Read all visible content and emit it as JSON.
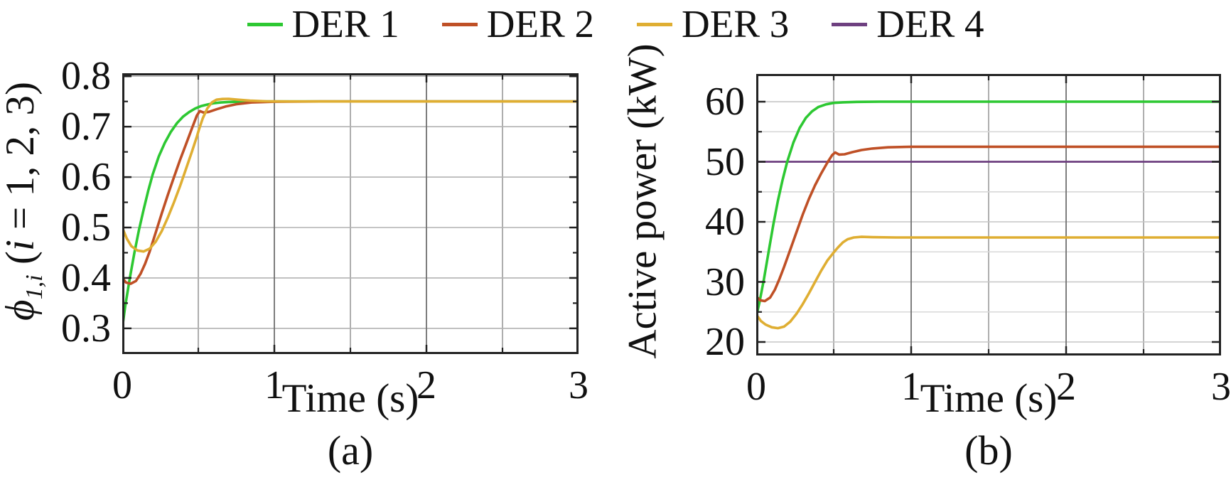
{
  "figure": {
    "background": "#ffffff",
    "text_color": "#111111",
    "axis_color": "#222222"
  },
  "legend": {
    "items": [
      {
        "label": "DER 1",
        "color": "#2dc832"
      },
      {
        "label": "DER 2",
        "color": "#bf5026"
      },
      {
        "label": "DER 3",
        "color": "#dfae32"
      },
      {
        "label": "DER 4",
        "color": "#6e4080"
      }
    ]
  },
  "chart_data": [
    {
      "id": "a",
      "type": "line",
      "title": "",
      "xlabel": "Time (s)",
      "ylabel": "ϕ1,i (i = 1, 2, 3)",
      "ylabel_parts": {
        "phi": "ϕ",
        "sub": "1,i",
        "open": " (",
        "var": "i",
        "rest": " = 1, 2, 3)"
      },
      "sublabel": "(a)",
      "xlim": [
        0,
        3
      ],
      "ylim": [
        0.249,
        0.806
      ],
      "xticks": [
        {
          "v": 0,
          "label": "0"
        },
        {
          "v": 1,
          "label": "1"
        },
        {
          "v": 2,
          "label": "2"
        },
        {
          "v": 3,
          "label": "3"
        }
      ],
      "xticks_minor": [
        0.5,
        1.5,
        2.5
      ],
      "yticks": [
        {
          "v": 0.3,
          "label": "0.3"
        },
        {
          "v": 0.4,
          "label": "0.4"
        },
        {
          "v": 0.5,
          "label": "0.5"
        },
        {
          "v": 0.6,
          "label": "0.6"
        },
        {
          "v": 0.7,
          "label": "0.7"
        },
        {
          "v": 0.8,
          "label": "0.8"
        }
      ],
      "yticks_minor": [
        0.35,
        0.45,
        0.55,
        0.65,
        0.75
      ],
      "grid": {
        "x_major": [
          1,
          2
        ],
        "x_minor": [
          0.5,
          1.5,
          2.5
        ],
        "y_major": [
          0.3,
          0.4,
          0.5,
          0.6,
          0.7,
          0.8
        ],
        "y_minor": []
      },
      "grid_colors": {
        "x_major": "#6f6f6f",
        "x_minor": "#9a9a9a",
        "y_major": "#b2b2b2",
        "y_minor": "#d6d6d6"
      },
      "series": [
        {
          "name": "DER 1",
          "color": "#2dc832",
          "points": [
            [
              0,
              0.3
            ],
            [
              0.02,
              0.345
            ],
            [
              0.05,
              0.4
            ],
            [
              0.08,
              0.45
            ],
            [
              0.11,
              0.495
            ],
            [
              0.14,
              0.535
            ],
            [
              0.17,
              0.572
            ],
            [
              0.2,
              0.605
            ],
            [
              0.24,
              0.641
            ],
            [
              0.28,
              0.668
            ],
            [
              0.32,
              0.69
            ],
            [
              0.36,
              0.707
            ],
            [
              0.4,
              0.72
            ],
            [
              0.44,
              0.729
            ],
            [
              0.48,
              0.736
            ],
            [
              0.52,
              0.741
            ],
            [
              0.56,
              0.744
            ],
            [
              0.6,
              0.7465
            ],
            [
              0.65,
              0.748
            ],
            [
              0.7,
              0.749
            ],
            [
              0.8,
              0.7498
            ],
            [
              0.9,
              0.75
            ],
            [
              3,
              0.75
            ]
          ]
        },
        {
          "name": "DER 2",
          "color": "#bf5026",
          "points": [
            [
              0,
              0.4
            ],
            [
              0.025,
              0.391
            ],
            [
              0.055,
              0.3885
            ],
            [
              0.09,
              0.394
            ],
            [
              0.12,
              0.408
            ],
            [
              0.15,
              0.428
            ],
            [
              0.18,
              0.452
            ],
            [
              0.22,
              0.49
            ],
            [
              0.26,
              0.528
            ],
            [
              0.3,
              0.565
            ],
            [
              0.34,
              0.6
            ],
            [
              0.38,
              0.634
            ],
            [
              0.42,
              0.666
            ],
            [
              0.46,
              0.698
            ],
            [
              0.49,
              0.722
            ],
            [
              0.51,
              0.731
            ],
            [
              0.535,
              0.728
            ],
            [
              0.57,
              0.7295
            ],
            [
              0.62,
              0.7345
            ],
            [
              0.68,
              0.74
            ],
            [
              0.75,
              0.7445
            ],
            [
              0.85,
              0.748
            ],
            [
              1.0,
              0.7495
            ],
            [
              1.3,
              0.75
            ],
            [
              3,
              0.75
            ]
          ]
        },
        {
          "name": "DER 3",
          "color": "#dfae32",
          "points": [
            [
              0,
              0.5
            ],
            [
              0.03,
              0.478
            ],
            [
              0.06,
              0.463
            ],
            [
              0.1,
              0.4545
            ],
            [
              0.14,
              0.4525
            ],
            [
              0.18,
              0.458
            ],
            [
              0.22,
              0.472
            ],
            [
              0.26,
              0.493
            ],
            [
              0.3,
              0.52
            ],
            [
              0.34,
              0.55
            ],
            [
              0.38,
              0.582
            ],
            [
              0.42,
              0.617
            ],
            [
              0.46,
              0.652
            ],
            [
              0.49,
              0.68
            ],
            [
              0.505,
              0.695
            ],
            [
              0.53,
              0.717
            ],
            [
              0.56,
              0.7365
            ],
            [
              0.59,
              0.7485
            ],
            [
              0.62,
              0.7535
            ],
            [
              0.66,
              0.755
            ],
            [
              0.7,
              0.7553
            ],
            [
              0.76,
              0.7535
            ],
            [
              0.84,
              0.7515
            ],
            [
              0.95,
              0.7503
            ],
            [
              1.1,
              0.75
            ],
            [
              3,
              0.75
            ]
          ]
        }
      ]
    },
    {
      "id": "b",
      "type": "line",
      "title": "",
      "xlabel": "Time (s)",
      "ylabel": "Active power (kW)",
      "sublabel": "(b)",
      "xlim": [
        0,
        3
      ],
      "ylim": [
        17.75,
        64.62
      ],
      "xticks": [
        {
          "v": 0,
          "label": "0"
        },
        {
          "v": 1,
          "label": "1"
        },
        {
          "v": 2,
          "label": "2"
        },
        {
          "v": 3,
          "label": "3"
        }
      ],
      "xticks_minor": [
        0.5,
        1.5,
        2.5
      ],
      "yticks": [
        {
          "v": 20,
          "label": "20"
        },
        {
          "v": 30,
          "label": "30"
        },
        {
          "v": 40,
          "label": "40"
        },
        {
          "v": 50,
          "label": "50"
        },
        {
          "v": 60,
          "label": "60"
        }
      ],
      "yticks_minor": [
        25,
        35,
        45,
        55
      ],
      "grid": {
        "x_major": [
          1,
          2
        ],
        "x_minor": [
          0.5,
          1.5,
          2.5
        ],
        "y_major": [
          20,
          30,
          40,
          50,
          60
        ],
        "y_minor": [
          25,
          35,
          45,
          55
        ]
      },
      "grid_colors": {
        "x_major": "#6f6f6f",
        "x_minor": "#9a9a9a",
        "y_major": "#c6c6c6",
        "y_minor": "#d8d8d8"
      },
      "series": [
        {
          "name": "DER 4",
          "color": "#6e4080",
          "points": [
            [
              0,
              50
            ],
            [
              3,
              50
            ]
          ]
        },
        {
          "name": "DER 1",
          "color": "#2dc832",
          "points": [
            [
              0,
              24.2
            ],
            [
              0.02,
              26.5
            ],
            [
              0.05,
              30.5
            ],
            [
              0.08,
              35
            ],
            [
              0.11,
              39.5
            ],
            [
              0.14,
              43.5
            ],
            [
              0.17,
              47
            ],
            [
              0.2,
              50
            ],
            [
              0.24,
              53.2
            ],
            [
              0.28,
              55.6
            ],
            [
              0.32,
              57.3
            ],
            [
              0.36,
              58.4
            ],
            [
              0.4,
              59.1
            ],
            [
              0.45,
              59.55
            ],
            [
              0.5,
              59.8
            ],
            [
              0.56,
              59.9
            ],
            [
              0.65,
              59.97
            ],
            [
              0.8,
              60
            ],
            [
              3,
              60
            ]
          ]
        },
        {
          "name": "DER 2",
          "color": "#bf5026",
          "points": [
            [
              0,
              27.6
            ],
            [
              0.025,
              26.95
            ],
            [
              0.055,
              26.8
            ],
            [
              0.09,
              27.4
            ],
            [
              0.12,
              28.7
            ],
            [
              0.15,
              30.5
            ],
            [
              0.18,
              32.5
            ],
            [
              0.22,
              35.4
            ],
            [
              0.26,
              38.3
            ],
            [
              0.3,
              41.2
            ],
            [
              0.34,
              43.8
            ],
            [
              0.38,
              46.1
            ],
            [
              0.42,
              48.1
            ],
            [
              0.46,
              49.9
            ],
            [
              0.49,
              51.1
            ],
            [
              0.51,
              51.55
            ],
            [
              0.535,
              51.2
            ],
            [
              0.57,
              51.25
            ],
            [
              0.62,
              51.6
            ],
            [
              0.68,
              51.95
            ],
            [
              0.75,
              52.2
            ],
            [
              0.85,
              52.4
            ],
            [
              1.0,
              52.5
            ],
            [
              3,
              52.5
            ]
          ]
        },
        {
          "name": "DER 3",
          "color": "#dfae32",
          "points": [
            [
              0,
              24.6
            ],
            [
              0.03,
              23.5
            ],
            [
              0.06,
              22.9
            ],
            [
              0.1,
              22.45
            ],
            [
              0.14,
              22.3
            ],
            [
              0.18,
              22.55
            ],
            [
              0.22,
              23.4
            ],
            [
              0.26,
              24.7
            ],
            [
              0.3,
              26.3
            ],
            [
              0.34,
              28.1
            ],
            [
              0.38,
              30.0
            ],
            [
              0.42,
              31.9
            ],
            [
              0.46,
              33.6
            ],
            [
              0.5,
              34.9
            ],
            [
              0.53,
              35.8
            ],
            [
              0.56,
              36.6
            ],
            [
              0.59,
              37.1
            ],
            [
              0.63,
              37.4
            ],
            [
              0.68,
              37.5
            ],
            [
              0.75,
              37.45
            ],
            [
              0.9,
              37.4
            ],
            [
              3,
              37.4
            ]
          ]
        }
      ]
    }
  ]
}
